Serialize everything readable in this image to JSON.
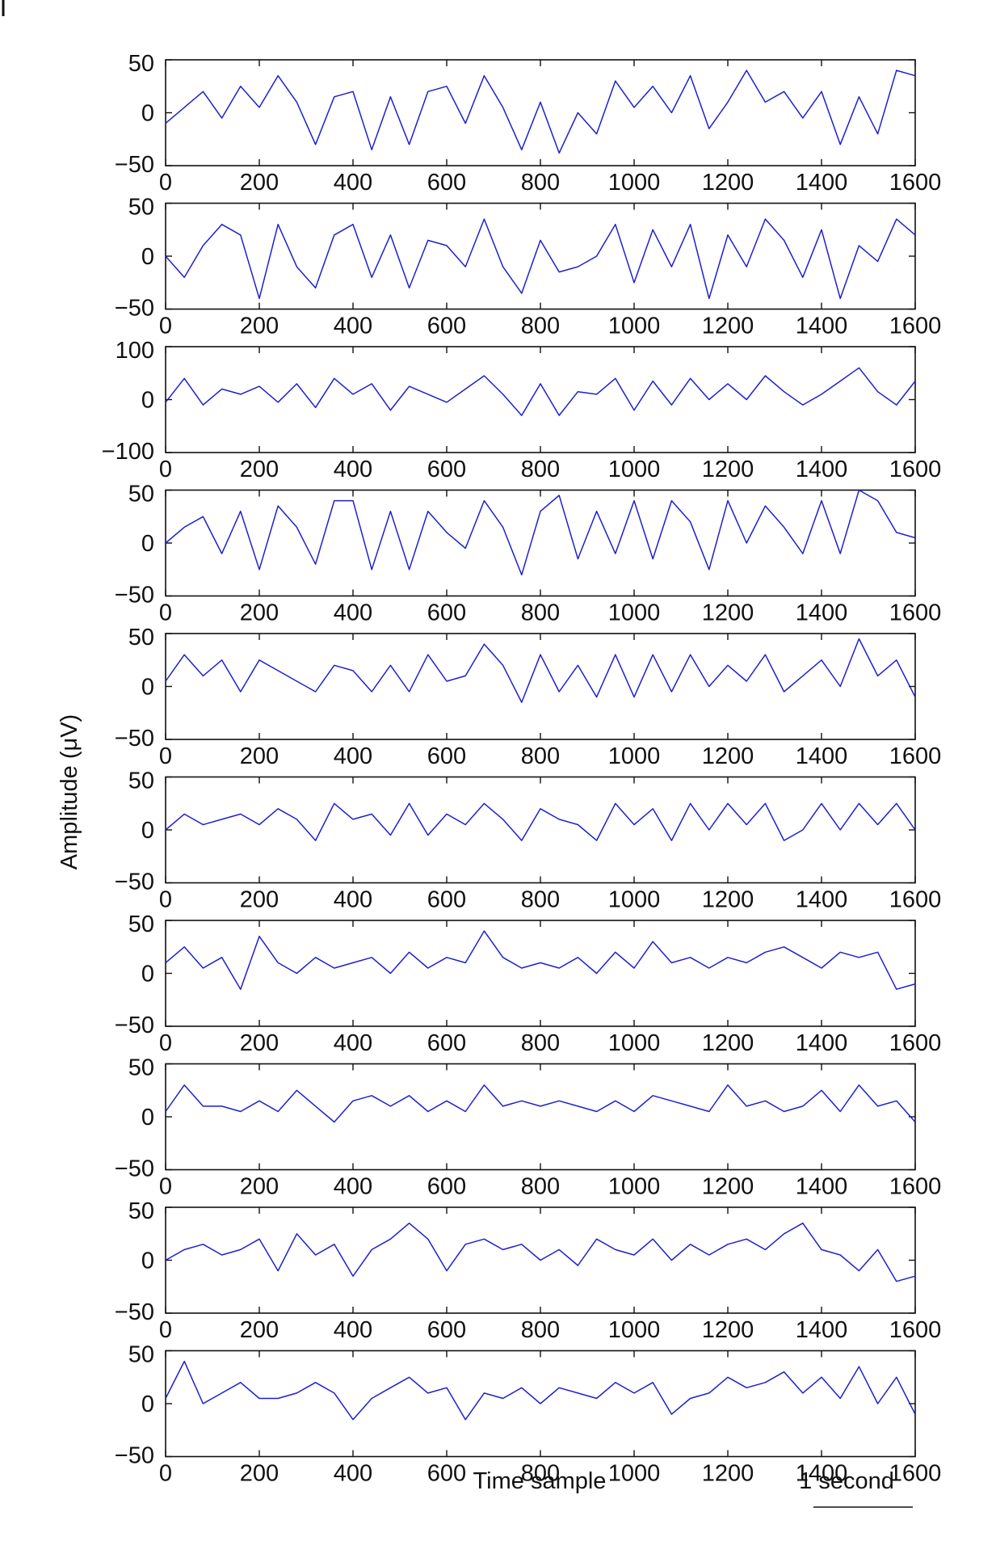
{
  "figure": {
    "ylabel": "Amplitude (μV)",
    "xlabel": "Time sample",
    "scalebar_label": "1 second",
    "trace_color": "#1f1fcf"
  },
  "chart_data": {
    "type": "line",
    "xlim": [
      0,
      1600
    ],
    "x_ticks": [
      0,
      200,
      400,
      600,
      800,
      1000,
      1200,
      1400,
      1600
    ],
    "x_tick_labels": [
      "0",
      "200",
      "400",
      "600",
      "800",
      "1000",
      "1200",
      "1400",
      "1600"
    ],
    "xlabel": "Time sample",
    "ylabel": "Amplitude (μV)",
    "series_x": [
      0,
      40,
      80,
      120,
      160,
      200,
      240,
      280,
      320,
      360,
      400,
      440,
      480,
      520,
      560,
      600,
      640,
      680,
      720,
      760,
      800,
      840,
      880,
      920,
      960,
      1000,
      1040,
      1080,
      1120,
      1160,
      1200,
      1240,
      1280,
      1320,
      1360,
      1400,
      1440,
      1480,
      1520,
      1560,
      1600
    ],
    "panels": [
      {
        "ylim": [
          -50,
          50
        ],
        "y_ticks": [
          50,
          0,
          -50
        ],
        "y_tick_labels": [
          "50",
          "0",
          "−50"
        ],
        "values": [
          -10,
          5,
          20,
          -5,
          25,
          5,
          35,
          10,
          -30,
          15,
          20,
          -35,
          15,
          -30,
          20,
          25,
          -10,
          35,
          5,
          -35,
          10,
          -38,
          0,
          -20,
          30,
          5,
          25,
          0,
          35,
          -15,
          10,
          40,
          10,
          20,
          -5,
          20,
          -30,
          15,
          -20,
          40,
          35
        ]
      },
      {
        "ylim": [
          -50,
          50
        ],
        "y_ticks": [
          50,
          0,
          -50
        ],
        "y_tick_labels": [
          "50",
          "0",
          "−50"
        ],
        "values": [
          0,
          -20,
          10,
          30,
          20,
          -40,
          30,
          -10,
          -30,
          20,
          30,
          -20,
          20,
          -30,
          15,
          10,
          -10,
          35,
          -10,
          -35,
          15,
          -15,
          -10,
          0,
          30,
          -25,
          25,
          -10,
          30,
          -40,
          20,
          -10,
          35,
          15,
          -20,
          25,
          -40,
          10,
          -5,
          35,
          20
        ]
      },
      {
        "ylim": [
          -100,
          100
        ],
        "y_ticks": [
          100,
          0,
          -100
        ],
        "y_tick_labels": [
          "100",
          "0",
          "−100"
        ],
        "values": [
          -5,
          40,
          -10,
          20,
          10,
          25,
          -5,
          30,
          -15,
          40,
          10,
          30,
          -20,
          25,
          10,
          -5,
          20,
          45,
          10,
          -30,
          30,
          -30,
          15,
          10,
          40,
          -20,
          35,
          -10,
          40,
          0,
          30,
          0,
          45,
          15,
          -10,
          10,
          35,
          60,
          15,
          -10,
          35
        ]
      },
      {
        "ylim": [
          -50,
          50
        ],
        "y_ticks": [
          50,
          0,
          -50
        ],
        "y_tick_labels": [
          "50",
          "0",
          "−50"
        ],
        "values": [
          0,
          15,
          25,
          -10,
          30,
          -25,
          35,
          15,
          -20,
          40,
          40,
          -25,
          30,
          -25,
          30,
          10,
          -5,
          40,
          15,
          -30,
          30,
          45,
          -15,
          30,
          -10,
          40,
          -15,
          40,
          20,
          -25,
          40,
          0,
          35,
          15,
          -10,
          40,
          -10,
          50,
          40,
          10,
          5
        ]
      },
      {
        "ylim": [
          -50,
          50
        ],
        "y_ticks": [
          50,
          0,
          -50
        ],
        "y_tick_labels": [
          "50",
          "0",
          "−50"
        ],
        "values": [
          5,
          30,
          10,
          25,
          -5,
          25,
          15,
          5,
          -5,
          20,
          15,
          -5,
          20,
          -5,
          30,
          5,
          10,
          40,
          20,
          -15,
          30,
          -5,
          20,
          -10,
          30,
          -10,
          30,
          -5,
          30,
          0,
          20,
          5,
          30,
          -5,
          10,
          25,
          0,
          45,
          10,
          25,
          -10
        ]
      },
      {
        "ylim": [
          -50,
          50
        ],
        "y_ticks": [
          50,
          0,
          -50
        ],
        "y_tick_labels": [
          "50",
          "0",
          "−50"
        ],
        "values": [
          0,
          15,
          5,
          10,
          15,
          5,
          20,
          10,
          -10,
          25,
          10,
          15,
          -5,
          25,
          -5,
          15,
          5,
          25,
          10,
          -10,
          20,
          10,
          5,
          -10,
          25,
          5,
          20,
          -10,
          25,
          0,
          25,
          5,
          25,
          -10,
          0,
          25,
          0,
          25,
          5,
          25,
          0
        ]
      },
      {
        "ylim": [
          -50,
          50
        ],
        "y_ticks": [
          50,
          0,
          -50
        ],
        "y_tick_labels": [
          "50",
          "0",
          "−50"
        ],
        "values": [
          10,
          25,
          5,
          15,
          -15,
          35,
          10,
          0,
          15,
          5,
          10,
          15,
          0,
          20,
          5,
          15,
          10,
          40,
          15,
          5,
          10,
          5,
          15,
          0,
          20,
          5,
          30,
          10,
          15,
          5,
          15,
          10,
          20,
          25,
          15,
          5,
          20,
          15,
          20,
          -15,
          -10
        ]
      },
      {
        "ylim": [
          -50,
          50
        ],
        "y_ticks": [
          50,
          0,
          -50
        ],
        "y_tick_labels": [
          "50",
          "0",
          "−50"
        ],
        "values": [
          5,
          30,
          10,
          10,
          5,
          15,
          5,
          25,
          10,
          -5,
          15,
          20,
          10,
          20,
          5,
          15,
          5,
          30,
          10,
          15,
          10,
          15,
          10,
          5,
          15,
          5,
          20,
          15,
          10,
          5,
          30,
          10,
          15,
          5,
          10,
          25,
          5,
          30,
          10,
          15,
          -5
        ]
      },
      {
        "ylim": [
          -50,
          50
        ],
        "y_ticks": [
          50,
          0,
          -50
        ],
        "y_tick_labels": [
          "50",
          "0",
          "−50"
        ],
        "values": [
          0,
          10,
          15,
          5,
          10,
          20,
          -10,
          25,
          5,
          15,
          -15,
          10,
          20,
          35,
          20,
          -10,
          15,
          20,
          10,
          15,
          0,
          10,
          -5,
          20,
          10,
          5,
          20,
          0,
          15,
          5,
          15,
          20,
          10,
          25,
          35,
          10,
          5,
          -10,
          10,
          -20,
          -15
        ]
      },
      {
        "ylim": [
          -50,
          50
        ],
        "y_ticks": [
          50,
          0,
          -50
        ],
        "y_tick_labels": [
          "50",
          "0",
          "−50"
        ],
        "values": [
          5,
          40,
          0,
          10,
          20,
          5,
          5,
          10,
          20,
          10,
          -15,
          5,
          15,
          25,
          10,
          15,
          -15,
          10,
          5,
          15,
          0,
          15,
          10,
          5,
          20,
          10,
          20,
          -10,
          5,
          10,
          25,
          15,
          20,
          30,
          10,
          25,
          5,
          35,
          0,
          25,
          -10
        ]
      }
    ]
  }
}
